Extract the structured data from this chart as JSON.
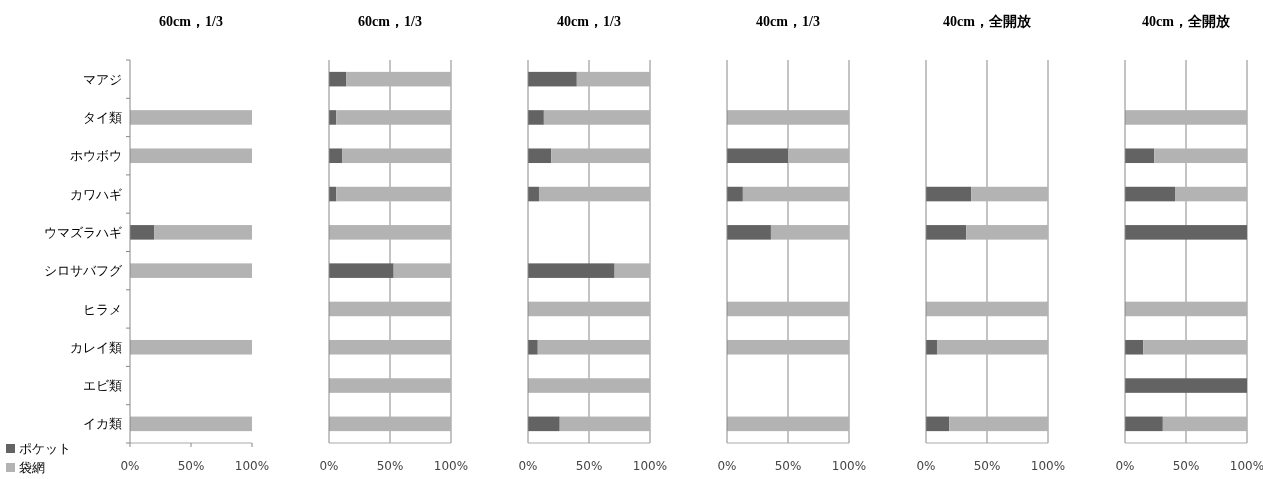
{
  "chart_data": [
    {
      "type": "bar",
      "orientation": "horizontal",
      "stacked": true,
      "title": "60cm，1/3",
      "categories": [
        "マアジ",
        "タイ類",
        "ホウボウ",
        "カワハギ",
        "ウマズラハギ",
        "シロサバフグ",
        "ヒラメ",
        "カレイ類",
        "エビ類",
        "イカ類"
      ],
      "xlim": [
        0,
        100
      ],
      "xticks": [
        {
          "value": 0,
          "label": "0%"
        },
        {
          "value": 50,
          "label": "50%"
        },
        {
          "value": 100,
          "label": "100%"
        }
      ],
      "grid": false,
      "legend": "bottom left",
      "series": [
        {
          "name": "ポケット",
          "color": "#636363",
          "values": [
            null,
            0,
            0,
            null,
            20,
            0,
            null,
            0,
            null,
            0
          ]
        },
        {
          "name": "袋網",
          "color": "#b3b3b3",
          "values": [
            null,
            100,
            100,
            null,
            80,
            100,
            null,
            100,
            null,
            100
          ]
        }
      ]
    },
    {
      "type": "bar",
      "orientation": "horizontal",
      "stacked": true,
      "title": "60cm，1/3",
      "xlim": [
        0,
        100
      ],
      "xticks": [
        {
          "value": 0,
          "label": "0%"
        },
        {
          "value": 50,
          "label": "50%"
        },
        {
          "value": 100,
          "label": "100%"
        }
      ],
      "grid": "x",
      "tick_labels": "x",
      "series": [
        {
          "color": "#636363",
          "values": [
            14,
            6,
            11,
            6,
            0,
            53,
            0,
            0,
            0,
            0
          ]
        },
        {
          "color": "#b3b3b3",
          "values": [
            86,
            94,
            89,
            94,
            100,
            47,
            100,
            100,
            100,
            100
          ]
        }
      ]
    },
    {
      "type": "bar",
      "orientation": "horizontal",
      "stacked": true,
      "title": "40cm，1/3",
      "xlim": [
        0,
        100
      ],
      "xticks": [
        {
          "value": 0,
          "label": "0%"
        },
        {
          "value": 50,
          "label": "50%"
        },
        {
          "value": 100,
          "label": "100%"
        }
      ],
      "grid": "x",
      "tick_labels": "x",
      "series": [
        {
          "color": "#636363",
          "values": [
            40,
            13,
            19,
            9,
            null,
            71,
            0,
            8,
            0,
            26
          ]
        },
        {
          "color": "#b3b3b3",
          "values": [
            60,
            87,
            81,
            91,
            null,
            29,
            100,
            92,
            100,
            74
          ]
        }
      ]
    },
    {
      "type": "bar",
      "orientation": "horizontal",
      "stacked": true,
      "title": "40cm，1/3",
      "xlim": [
        0,
        100
      ],
      "xticks": [
        {
          "value": 0,
          "label": "0%"
        },
        {
          "value": 50,
          "label": "50%"
        },
        {
          "value": 100,
          "label": "100%"
        }
      ],
      "grid": "x",
      "tick_labels": "x",
      "series": [
        {
          "color": "#636363",
          "values": [
            null,
            0,
            50,
            13,
            36,
            null,
            0,
            0,
            null,
            0
          ]
        },
        {
          "color": "#b3b3b3",
          "values": [
            null,
            100,
            50,
            87,
            64,
            null,
            100,
            100,
            null,
            100
          ]
        }
      ]
    },
    {
      "type": "bar",
      "orientation": "horizontal",
      "stacked": true,
      "title": "40cm，全開放",
      "xlim": [
        0,
        100
      ],
      "xticks": [
        {
          "value": 0,
          "label": "0%"
        },
        {
          "value": 50,
          "label": "50%"
        },
        {
          "value": 100,
          "label": "100%"
        }
      ],
      "grid": "x",
      "tick_labels": "x",
      "series": [
        {
          "color": "#636363",
          "values": [
            null,
            null,
            null,
            37,
            33,
            null,
            0,
            9,
            null,
            19
          ]
        },
        {
          "color": "#b3b3b3",
          "values": [
            null,
            null,
            null,
            63,
            67,
            null,
            100,
            91,
            null,
            81
          ]
        }
      ]
    },
    {
      "type": "bar",
      "orientation": "horizontal",
      "stacked": true,
      "title": "40cm，全開放",
      "xlim": [
        0,
        100
      ],
      "xticks": [
        {
          "value": 0,
          "label": "0%"
        },
        {
          "value": 50,
          "label": "50%"
        },
        {
          "value": 100,
          "label": "100%"
        }
      ],
      "grid": "x",
      "tick_labels": "x",
      "series": [
        {
          "color": "#636363",
          "values": [
            null,
            0,
            24,
            41,
            100,
            null,
            0,
            15,
            100,
            31
          ]
        },
        {
          "color": "#b3b3b3",
          "values": [
            null,
            100,
            76,
            59,
            0,
            null,
            100,
            85,
            0,
            69
          ]
        }
      ]
    }
  ]
}
